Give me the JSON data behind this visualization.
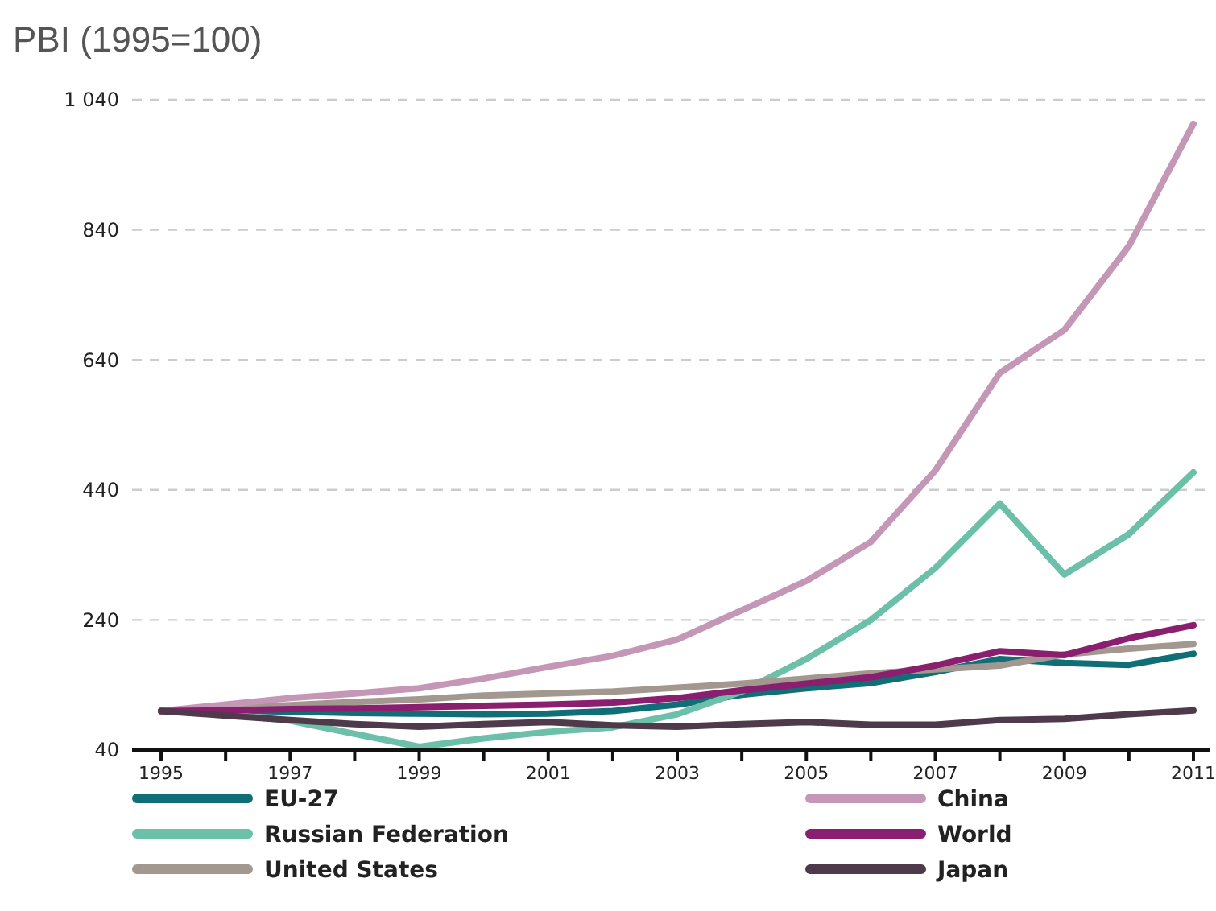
{
  "chart_data": {
    "type": "line",
    "title": "PBI (1995=100)",
    "x": [
      1995,
      1996,
      1997,
      1998,
      1999,
      2000,
      2001,
      2002,
      2003,
      2004,
      2005,
      2006,
      2007,
      2008,
      2009,
      2010,
      2011
    ],
    "xlim": [
      1994.55,
      2011.25
    ],
    "xticks": [
      1995,
      {
        "value": 1996,
        "label": null
      },
      1997,
      {
        "value": 1998,
        "label": null
      },
      1999,
      {
        "value": 2000,
        "label": null
      },
      2001,
      {
        "value": 2002,
        "label": null
      },
      2003,
      {
        "value": 2004,
        "label": null
      },
      2005,
      {
        "value": 2006,
        "label": null
      },
      2007,
      {
        "value": 2008,
        "label": null
      },
      2009,
      {
        "value": 2010,
        "label": null
      },
      2011
    ],
    "ylim": [
      40,
      1040
    ],
    "yticks": [
      40,
      240,
      440,
      640,
      840,
      {
        "value": 1040,
        "label": "1 040"
      }
    ],
    "grid": "y",
    "legend": "bottom",
    "line_style": "solid",
    "marker": "none",
    "series": [
      {
        "name": "EU-27",
        "color": "#0f6e76",
        "values": [
          100,
          101,
          99,
          97,
          96,
          95,
          96,
          100,
          110,
          125,
          135,
          143,
          160,
          180,
          174,
          171,
          188
        ]
      },
      {
        "name": "Russian Federation",
        "color": "#6cbfa8",
        "values": [
          100,
          95,
          85,
          65,
          45,
          58,
          68,
          75,
          95,
          130,
          180,
          240,
          320,
          419,
          310,
          372,
          467
        ]
      },
      {
        "name": "United States",
        "color": "#a39890",
        "values": [
          100,
          104,
          109,
          114,
          118,
          124,
          127,
          130,
          136,
          142,
          150,
          158,
          164,
          170,
          187,
          196,
          203
        ]
      },
      {
        "name": "China",
        "color": "#c597b6",
        "values": [
          100,
          110,
          120,
          127,
          135,
          150,
          168,
          185,
          210,
          255,
          300,
          360,
          470,
          620,
          686,
          815,
          1003
        ]
      },
      {
        "name": "World",
        "color": "#8a1e6f",
        "values": [
          100,
          101,
          103,
          104,
          106,
          108,
          110,
          113,
          120,
          132,
          142,
          152,
          170,
          192,
          186,
          212,
          232
        ]
      },
      {
        "name": "Japan",
        "color": "#4e3a4a",
        "values": [
          100,
          93,
          86,
          80,
          76,
          80,
          83,
          78,
          76,
          80,
          83,
          79,
          79,
          86,
          88,
          95,
          101
        ]
      }
    ]
  }
}
